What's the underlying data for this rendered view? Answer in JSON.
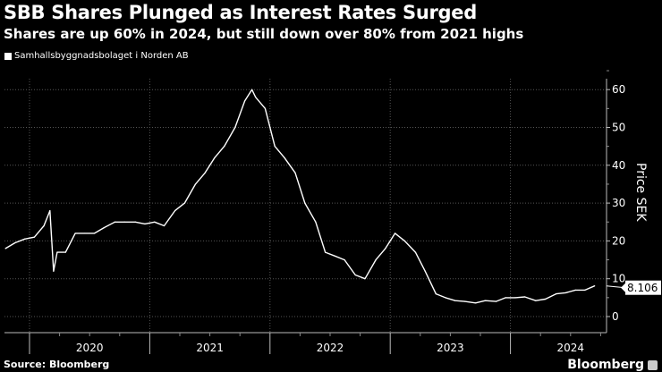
{
  "chart_data": {
    "type": "line",
    "title": "SBB Shares Plunged as Interest Rates Surged",
    "subtitle": "Shares are up 60% in 2024, but still down over 80% from 2021 highs",
    "legend": [
      "Samhallsbyggnadsbolaget i Norden AB"
    ],
    "legend_placement": "top-left",
    "ylabel": "Price SEK",
    "ylim": [
      -3,
      62
    ],
    "yticks": [
      0,
      10,
      20,
      30,
      40,
      50,
      60
    ],
    "xlim": [
      2019.8,
      2024.85
    ],
    "xticks": [
      {
        "label": "2020",
        "year": 2020
      },
      {
        "label": "2021",
        "year": 2021
      },
      {
        "label": "2022",
        "year": 2022
      },
      {
        "label": "2023",
        "year": 2023
      },
      {
        "label": "2024",
        "year": 2024
      }
    ],
    "grid": true,
    "last_value_label": "8.106",
    "series": [
      {
        "name": "Samhallsbyggnadsbolaget i Norden AB",
        "color": "#ffffff",
        "x": [
          2019.8,
          2019.88,
          2019.96,
          2020.04,
          2020.12,
          2020.17,
          2020.2,
          2020.23,
          2020.3,
          2020.38,
          2020.46,
          2020.54,
          2020.62,
          2020.71,
          2020.79,
          2020.88,
          2020.96,
          2021.04,
          2021.12,
          2021.21,
          2021.29,
          2021.38,
          2021.46,
          2021.54,
          2021.62,
          2021.71,
          2021.79,
          2021.85,
          2021.88,
          2021.96,
          2022.04,
          2022.12,
          2022.21,
          2022.29,
          2022.38,
          2022.46,
          2022.54,
          2022.62,
          2022.71,
          2022.79,
          2022.88,
          2022.96,
          2023.04,
          2023.12,
          2023.21,
          2023.29,
          2023.38,
          2023.46,
          2023.54,
          2023.62,
          2023.71,
          2023.79,
          2023.88,
          2023.96,
          2024.04,
          2024.12,
          2024.21,
          2024.29,
          2024.38,
          2024.46,
          2024.54,
          2024.62,
          2024.7
        ],
        "values": [
          18,
          19.5,
          20.5,
          21,
          24,
          28,
          12,
          17,
          17,
          22,
          22,
          22,
          23.5,
          25,
          25,
          25,
          24.5,
          25,
          24,
          28,
          30,
          35,
          38,
          42,
          45,
          50,
          57,
          60,
          58,
          55,
          45,
          42,
          38,
          30,
          25,
          17,
          16,
          15,
          11,
          10,
          15,
          18,
          22,
          20,
          17,
          12,
          6,
          5,
          4.2,
          4,
          3.6,
          4.2,
          4,
          5,
          5,
          5.2,
          4.2,
          4.6,
          6,
          6.3,
          7,
          7,
          8.106
        ]
      }
    ]
  },
  "footer": {
    "source": "Source: Bloomberg",
    "brand": "Bloomberg"
  }
}
